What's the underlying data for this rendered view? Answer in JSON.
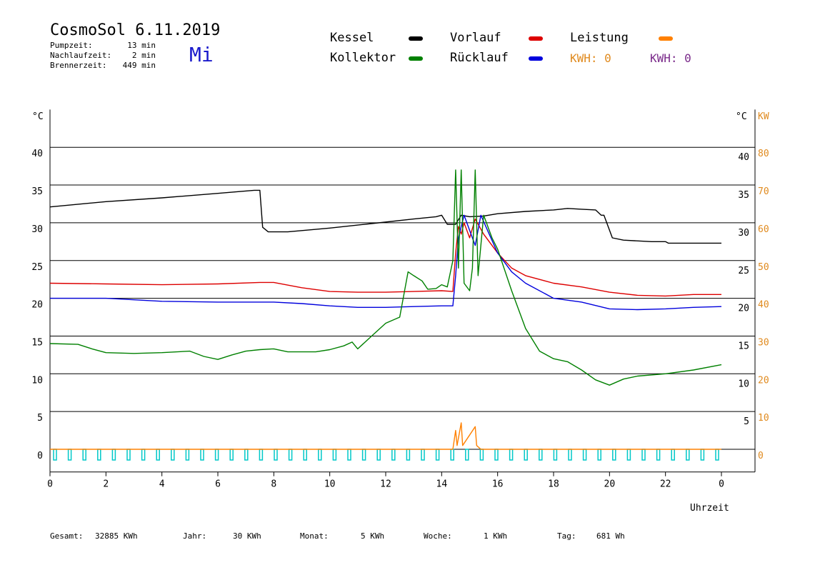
{
  "header": {
    "title": "CosmoSol 6.11.2019",
    "day": "Mi",
    "stats": [
      {
        "label": "Pumpzeit:",
        "value": "13 min"
      },
      {
        "label": "Nachlaufzeit:",
        "value": "2 min"
      },
      {
        "label": "Brennerzeit:",
        "value": "449 min"
      }
    ]
  },
  "legend": [
    {
      "label": "Kessel",
      "color": "#000000"
    },
    {
      "label": "Vorlauf",
      "color": "#dd0000"
    },
    {
      "label": "Leistung",
      "color": "#ff8000"
    },
    {
      "label": "Kollektor",
      "color": "#008000"
    },
    {
      "label": "Rücklauf",
      "color": "#0000dd"
    }
  ],
  "kwh": [
    {
      "text": "KWH: 0",
      "color": "#e08a1e"
    },
    {
      "text": "KWH: 0",
      "color": "#7a2a8a"
    }
  ],
  "footer": [
    {
      "label": "Gesamt:",
      "value": "32885 KWh"
    },
    {
      "label": "Jahr:",
      "value": "30 KWh"
    },
    {
      "label": "Monat:",
      "value": "5 KWh"
    },
    {
      "label": "Woche:",
      "value": "1 KWh"
    },
    {
      "label": "Tag:",
      "value": "681 Wh"
    }
  ],
  "chart_data": {
    "type": "line",
    "xlabel": "Uhrzeit",
    "ylabel_left": "°C",
    "ylabel_right": [
      "°C",
      "KW"
    ],
    "xlim": [
      0,
      24
    ],
    "ylim": [
      -3,
      45
    ],
    "grid": true,
    "x_ticks": [
      "0",
      "2",
      "4",
      "6",
      "8",
      "10",
      "12",
      "14",
      "16",
      "18",
      "20",
      "22",
      "0"
    ],
    "y_ticks_left": [
      0,
      5,
      10,
      15,
      20,
      25,
      30,
      35,
      40
    ],
    "y_ticks_right_celsius": [
      5,
      10,
      15,
      20,
      25,
      30,
      35,
      40
    ],
    "y_ticks_right_kw": [
      0,
      10,
      20,
      30,
      40,
      50,
      60,
      70,
      80
    ],
    "series": [
      {
        "name": "Kessel",
        "color": "#000000",
        "points": [
          [
            0,
            32.1
          ],
          [
            2,
            32.8
          ],
          [
            4,
            33.3
          ],
          [
            6,
            33.9
          ],
          [
            7.3,
            34.3
          ],
          [
            7.5,
            34.3
          ],
          [
            7.6,
            29.4
          ],
          [
            7.8,
            28.8
          ],
          [
            8.5,
            28.8
          ],
          [
            10,
            29.3
          ],
          [
            11.5,
            29.9
          ],
          [
            13,
            30.5
          ],
          [
            13.8,
            30.8
          ],
          [
            14,
            31.0
          ],
          [
            14.2,
            29.8
          ],
          [
            14.5,
            29.8
          ],
          [
            14.7,
            31.0
          ],
          [
            15,
            30.8
          ],
          [
            15.5,
            30.9
          ],
          [
            16,
            31.2
          ],
          [
            17,
            31.5
          ],
          [
            18,
            31.7
          ],
          [
            18.5,
            31.9
          ],
          [
            19,
            31.8
          ],
          [
            19.5,
            31.7
          ],
          [
            19.7,
            31.0
          ],
          [
            19.8,
            31.0
          ],
          [
            20.1,
            28.0
          ],
          [
            20.5,
            27.7
          ],
          [
            21.5,
            27.5
          ],
          [
            22,
            27.5
          ],
          [
            22.1,
            27.3
          ],
          [
            23,
            27.3
          ],
          [
            24,
            27.3
          ]
        ]
      },
      {
        "name": "Vorlauf",
        "color": "#dd0000",
        "points": [
          [
            0,
            22.0
          ],
          [
            2,
            21.9
          ],
          [
            4,
            21.8
          ],
          [
            6,
            21.9
          ],
          [
            7.5,
            22.1
          ],
          [
            8,
            22.1
          ],
          [
            9,
            21.4
          ],
          [
            10,
            20.9
          ],
          [
            11,
            20.8
          ],
          [
            12,
            20.8
          ],
          [
            13,
            20.9
          ],
          [
            14,
            21.0
          ],
          [
            14.4,
            20.9
          ],
          [
            14.5,
            26.0
          ],
          [
            14.6,
            29.5
          ],
          [
            14.7,
            28.5
          ],
          [
            14.8,
            30.0
          ],
          [
            15,
            28.0
          ],
          [
            15.2,
            30.5
          ],
          [
            15.5,
            28.5
          ],
          [
            16,
            26.0
          ],
          [
            16.5,
            24.0
          ],
          [
            17,
            23.0
          ],
          [
            18,
            22.0
          ],
          [
            19,
            21.5
          ],
          [
            20,
            20.8
          ],
          [
            21,
            20.4
          ],
          [
            22,
            20.3
          ],
          [
            23,
            20.5
          ],
          [
            24,
            20.5
          ]
        ]
      },
      {
        "name": "Rücklauf",
        "color": "#0000dd",
        "points": [
          [
            0,
            20.0
          ],
          [
            2,
            20.0
          ],
          [
            4,
            19.6
          ],
          [
            6,
            19.5
          ],
          [
            8,
            19.5
          ],
          [
            9,
            19.3
          ],
          [
            10,
            19.0
          ],
          [
            11,
            18.8
          ],
          [
            12,
            18.8
          ],
          [
            13,
            18.9
          ],
          [
            14,
            19.0
          ],
          [
            14.4,
            19.0
          ],
          [
            14.5,
            23.0
          ],
          [
            14.6,
            28.0
          ],
          [
            14.8,
            31.0
          ],
          [
            15,
            29.0
          ],
          [
            15.2,
            27.0
          ],
          [
            15.4,
            31.0
          ],
          [
            15.7,
            28.5
          ],
          [
            16,
            26.0
          ],
          [
            16.5,
            23.5
          ],
          [
            17,
            22.0
          ],
          [
            18,
            20.0
          ],
          [
            19,
            19.5
          ],
          [
            20,
            18.6
          ],
          [
            21,
            18.5
          ],
          [
            22,
            18.6
          ],
          [
            23,
            18.8
          ],
          [
            24,
            18.9
          ]
        ]
      },
      {
        "name": "Kollektor",
        "color": "#008000",
        "points": [
          [
            0,
            14.0
          ],
          [
            1,
            13.9
          ],
          [
            1.5,
            13.3
          ],
          [
            2,
            12.8
          ],
          [
            3,
            12.7
          ],
          [
            4,
            12.8
          ],
          [
            5,
            13.0
          ],
          [
            5.5,
            12.3
          ],
          [
            6,
            11.9
          ],
          [
            6.5,
            12.5
          ],
          [
            7,
            13.0
          ],
          [
            7.5,
            13.2
          ],
          [
            8,
            13.3
          ],
          [
            8.5,
            12.9
          ],
          [
            9.5,
            12.9
          ],
          [
            10,
            13.2
          ],
          [
            10.5,
            13.7
          ],
          [
            10.8,
            14.2
          ],
          [
            11,
            13.3
          ],
          [
            11.5,
            15.0
          ],
          [
            12,
            16.7
          ],
          [
            12.5,
            17.5
          ],
          [
            12.8,
            23.5
          ],
          [
            13,
            23.0
          ],
          [
            13.3,
            22.3
          ],
          [
            13.5,
            21.2
          ],
          [
            13.8,
            21.3
          ],
          [
            14,
            21.8
          ],
          [
            14.2,
            21.5
          ],
          [
            14.4,
            25.0
          ],
          [
            14.5,
            37.0
          ],
          [
            14.6,
            24.0
          ],
          [
            14.7,
            37.0
          ],
          [
            14.8,
            22.0
          ],
          [
            15,
            21.0
          ],
          [
            15.1,
            24.0
          ],
          [
            15.2,
            37.0
          ],
          [
            15.3,
            23.0
          ],
          [
            15.5,
            31.0
          ],
          [
            15.8,
            28.0
          ],
          [
            16,
            26.5
          ],
          [
            16.5,
            21.0
          ],
          [
            17,
            16.0
          ],
          [
            17.5,
            13.0
          ],
          [
            18,
            12.0
          ],
          [
            18.5,
            11.6
          ],
          [
            19,
            10.5
          ],
          [
            19.5,
            9.2
          ],
          [
            20,
            8.5
          ],
          [
            20.5,
            9.3
          ],
          [
            21,
            9.7
          ],
          [
            22,
            10.0
          ],
          [
            23,
            10.5
          ],
          [
            24,
            11.2
          ]
        ]
      },
      {
        "name": "Leistung",
        "color": "#ff8000",
        "points": [
          [
            0,
            0
          ],
          [
            14.4,
            0
          ],
          [
            14.5,
            2.5
          ],
          [
            14.55,
            0.5
          ],
          [
            14.7,
            3.5
          ],
          [
            14.75,
            0.5
          ],
          [
            15.2,
            3.0
          ],
          [
            15.25,
            0.5
          ],
          [
            15.4,
            0
          ],
          [
            24,
            0
          ]
        ]
      },
      {
        "name": "Pumpe",
        "color": "#00c8c8",
        "points": []
      }
    ]
  }
}
